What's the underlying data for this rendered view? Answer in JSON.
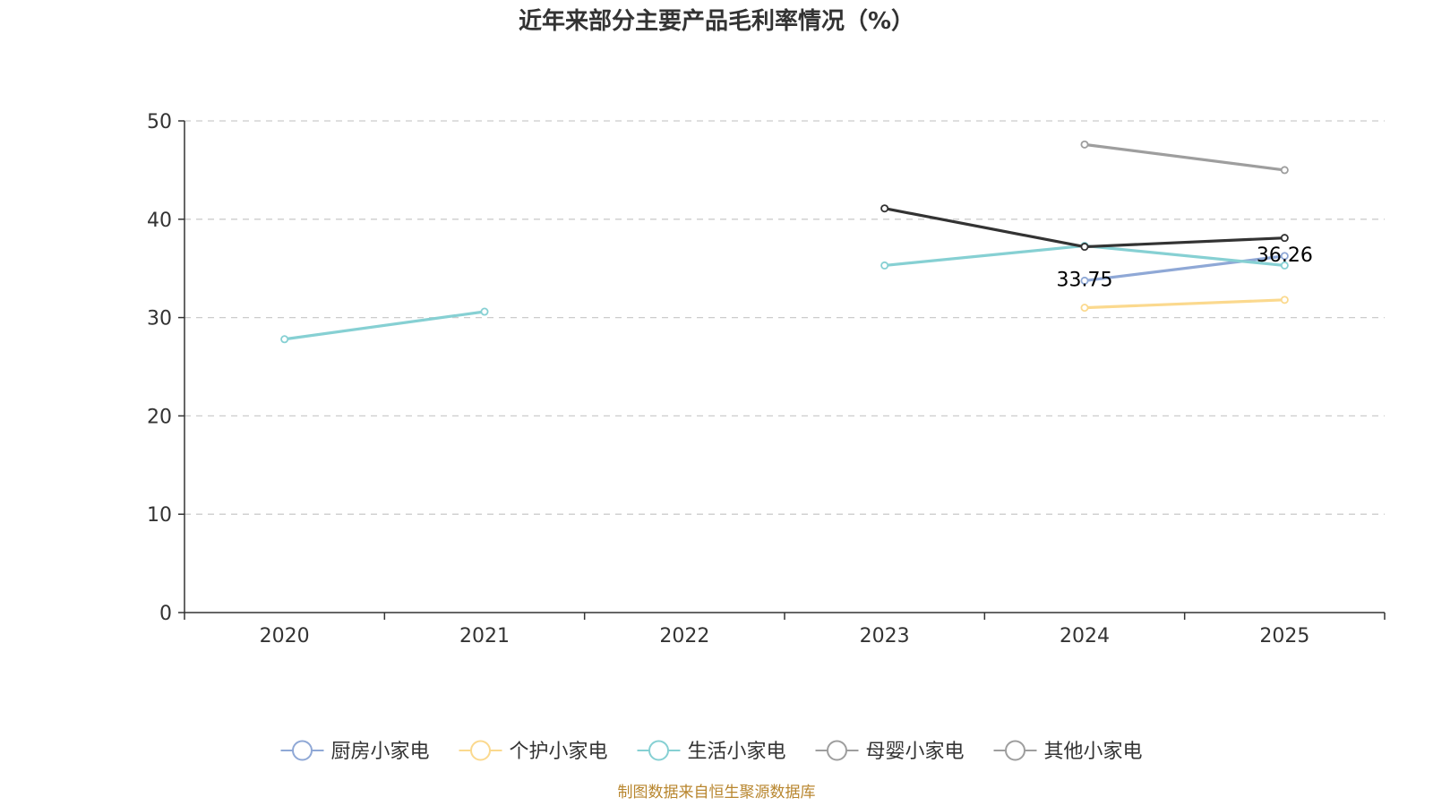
{
  "chart_data": {
    "type": "line",
    "title": "近年来部分主要产品毛利率情况（%）",
    "xlabel": "",
    "ylabel": "",
    "categories": [
      "2020",
      "2021",
      "2022",
      "2023",
      "2024",
      "2025"
    ],
    "ylim": [
      0,
      50
    ],
    "yticks": [
      0,
      10,
      20,
      30,
      40,
      50
    ],
    "grid": true,
    "legend_position": "bottom",
    "series": [
      {
        "name": "厨房小家电",
        "color": "#8fa8d6",
        "values": [
          null,
          null,
          null,
          null,
          33.75,
          36.26
        ]
      },
      {
        "name": "个护小家电",
        "color": "#fbd98e",
        "values": [
          null,
          null,
          null,
          null,
          31.0,
          31.8
        ]
      },
      {
        "name": "生活小家电",
        "color": "#86d0d3",
        "values": [
          27.8,
          30.6,
          null,
          35.3,
          37.3,
          35.3
        ]
      },
      {
        "name": "母婴小家电",
        "color": "#9e9e9e",
        "values": [
          null,
          null,
          null,
          null,
          47.6,
          45.0
        ]
      },
      {
        "name": "其他小家电",
        "color": "#333333",
        "legend_color": "#9e9e9e",
        "values": [
          null,
          null,
          null,
          41.1,
          37.2,
          38.1
        ]
      }
    ],
    "data_labels": [
      {
        "series": 0,
        "index": 4,
        "text": "33.75"
      },
      {
        "series": 0,
        "index": 5,
        "text": "36.26"
      }
    ]
  },
  "source_text": "制图数据来自恒生聚源数据库"
}
